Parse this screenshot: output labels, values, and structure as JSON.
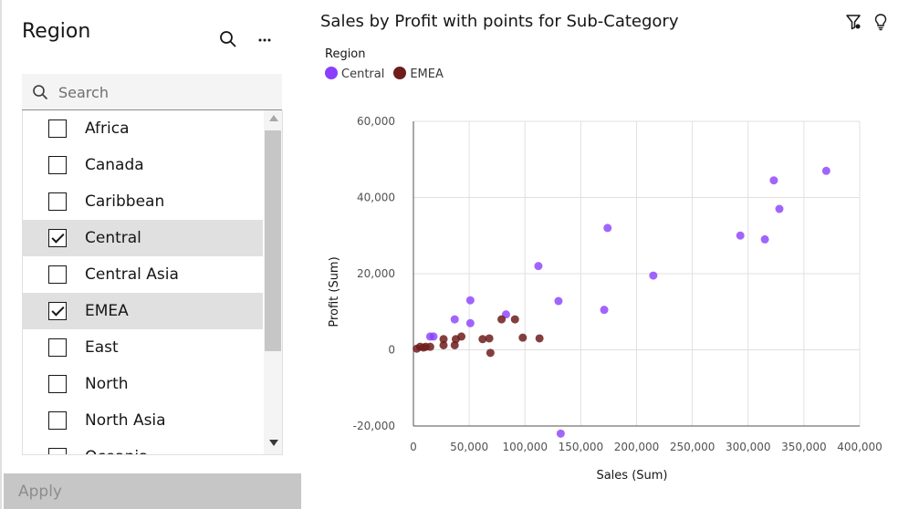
{
  "filter_panel": {
    "title": "Region",
    "search_placeholder": "Search",
    "items": [
      {
        "label": "Africa",
        "checked": false
      },
      {
        "label": "Canada",
        "checked": false
      },
      {
        "label": "Caribbean",
        "checked": false
      },
      {
        "label": "Central",
        "checked": true
      },
      {
        "label": "Central Asia",
        "checked": false
      },
      {
        "label": "EMEA",
        "checked": true
      },
      {
        "label": "East",
        "checked": false
      },
      {
        "label": "North",
        "checked": false
      },
      {
        "label": "North Asia",
        "checked": false
      },
      {
        "label": "Oceania",
        "checked": false
      }
    ],
    "apply_label": "Apply",
    "icons": {
      "search": "search-icon",
      "more": "overflow-menu-icon"
    }
  },
  "chart": {
    "title": "Sales by Profit with points for Sub-Category",
    "legend_title": "Region",
    "icons": {
      "filter": "filter-icon",
      "insight": "lightbulb-icon"
    }
  },
  "chart_data": {
    "type": "scatter",
    "title": "Sales by Profit with points for Sub-Category",
    "xlabel": "Sales (Sum)",
    "ylabel": "Profit (Sum)",
    "xlim": [
      0,
      400000
    ],
    "ylim": [
      -20000,
      60000
    ],
    "x_ticks": [
      "0",
      "50,000",
      "100,000",
      "150,000",
      "200,000",
      "250,000",
      "300,000",
      "350,000",
      "400,000"
    ],
    "y_ticks": [
      "-20,000",
      "0",
      "20,000",
      "40,000",
      "60,000"
    ],
    "grid": true,
    "legend_position": "top-left",
    "series": [
      {
        "name": "Central",
        "color": "#8a3ffc",
        "points": [
          [
            15000,
            3500
          ],
          [
            18000,
            3500
          ],
          [
            37000,
            8000
          ],
          [
            51000,
            7000
          ],
          [
            51000,
            13000
          ],
          [
            83000,
            9300
          ],
          [
            112000,
            22000
          ],
          [
            130000,
            12800
          ],
          [
            132000,
            -22000
          ],
          [
            171000,
            10500
          ],
          [
            174000,
            32000
          ],
          [
            215000,
            19500
          ],
          [
            293000,
            30000
          ],
          [
            315000,
            29000
          ],
          [
            323000,
            44500
          ],
          [
            328000,
            37000
          ],
          [
            370000,
            47000
          ]
        ]
      },
      {
        "name": "EMEA",
        "color": "#6f1c1c",
        "points": [
          [
            3000,
            300
          ],
          [
            6000,
            800
          ],
          [
            9000,
            600
          ],
          [
            11000,
            800
          ],
          [
            15000,
            800
          ],
          [
            27000,
            2800
          ],
          [
            27000,
            1200
          ],
          [
            37000,
            1200
          ],
          [
            38000,
            2800
          ],
          [
            43000,
            3500
          ],
          [
            62000,
            2800
          ],
          [
            68000,
            3000
          ],
          [
            69000,
            -800
          ],
          [
            79000,
            8000
          ],
          [
            91000,
            8000
          ],
          [
            98000,
            3200
          ],
          [
            113000,
            3000
          ]
        ]
      }
    ]
  }
}
